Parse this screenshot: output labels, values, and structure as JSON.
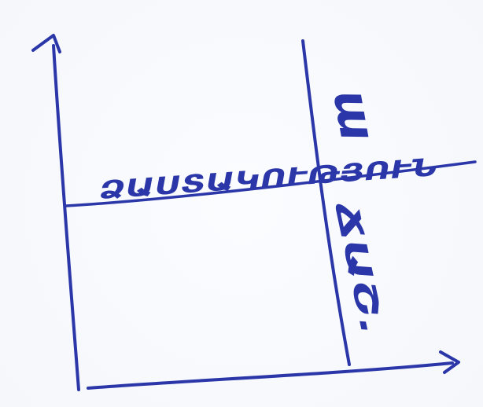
{
  "diagram": {
    "labels": {
      "upper_right": "ա",
      "horizontal_line": "ՁԱՍՏԱԿՈՒԹՅՈՒՆ",
      "lower_right": "ՃԱՇ."
    },
    "ink_color": "#2b37a8"
  }
}
